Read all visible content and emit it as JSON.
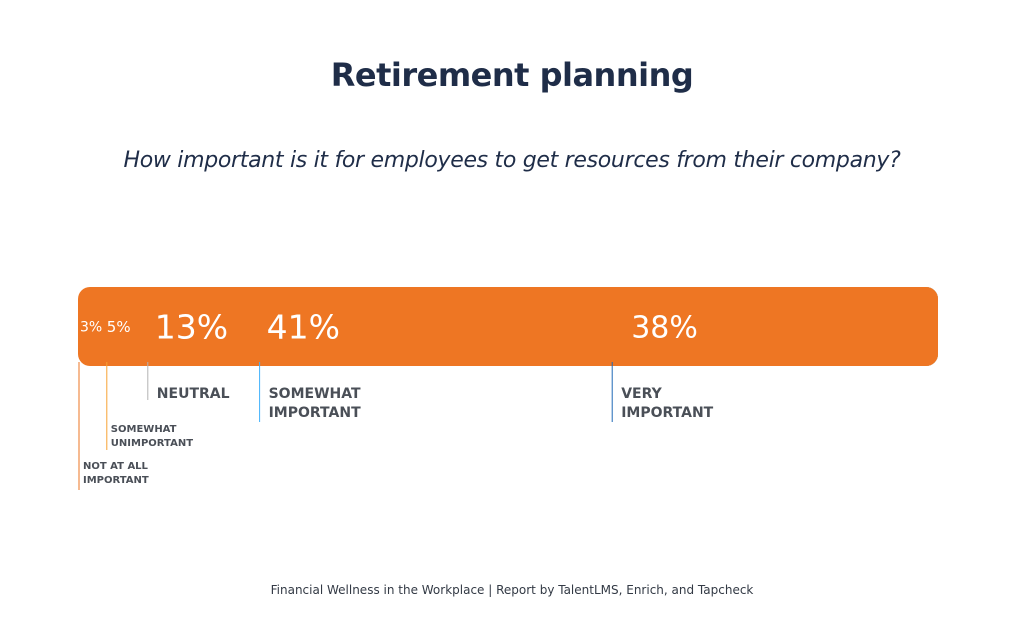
{
  "chart_data": {
    "type": "bar",
    "orientation": "horizontal-stacked",
    "title": "Retirement planning",
    "subtitle": "How important is it for employees to get resources from their company?",
    "segments": [
      {
        "label_lines": [
          "NOT AT ALL",
          "IMPORTANT"
        ],
        "value": 3,
        "value_label": "3%",
        "color": "#ee7623"
      },
      {
        "label_lines": [
          "SOMEWHAT",
          "UNIMPORTANT"
        ],
        "value": 5,
        "value_label": "5%",
        "color": "#f7a233"
      },
      {
        "label_lines": [
          "NEUTRAL"
        ],
        "value": 13,
        "value_label": "13%",
        "color": "#b3b3b3"
      },
      {
        "label_lines": [
          "SOMEWHAT",
          "IMPORTANT"
        ],
        "value": 41,
        "value_label": "41%",
        "color": "#41b1fc"
      },
      {
        "label_lines": [
          "VERY",
          "IMPORTANT"
        ],
        "value": 38,
        "value_label": "38%",
        "color": "#1f6ab6"
      }
    ]
  },
  "footer": "Financial Wellness in the Workplace | Report by TalentLMS, Enrich, and Tapcheck"
}
